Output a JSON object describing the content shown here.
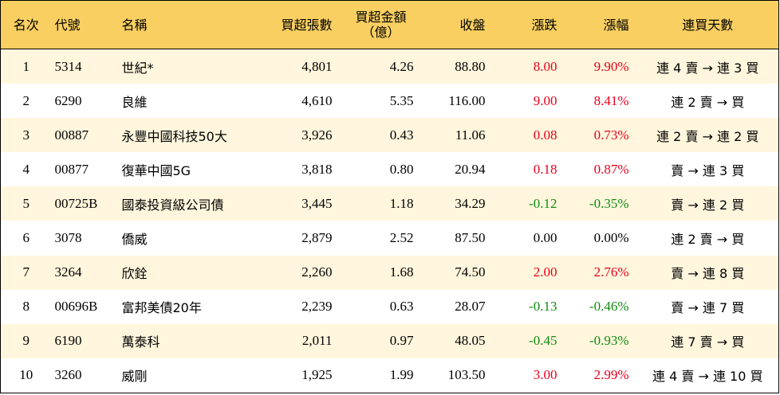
{
  "headers": {
    "rank": "名次",
    "code": "代號",
    "name": "名稱",
    "net_buy_lots": "買超張數",
    "net_buy_amount_line1": "買超金額",
    "net_buy_amount_line2": "（億）",
    "close": "收盤",
    "change": "漲跌",
    "change_pct": "漲幅",
    "consecutive_days": "連買天數"
  },
  "colors": {
    "header_bg": "#f9cf61",
    "odd_row_bg": "#fff6dd",
    "even_row_bg": "#ffffff",
    "up": "#e8001c",
    "down": "#118c11",
    "flat": "#000000"
  },
  "rows": [
    {
      "rank": "1",
      "code": "5314",
      "name": "世紀*",
      "lots": "4,801",
      "amount": "4.26",
      "close": "88.80",
      "change": "8.00",
      "pct": "9.90%",
      "dir": "up",
      "days": "連 4 賣 → 連 3 買"
    },
    {
      "rank": "2",
      "code": "6290",
      "name": "良維",
      "lots": "4,610",
      "amount": "5.35",
      "close": "116.00",
      "change": "9.00",
      "pct": "8.41%",
      "dir": "up",
      "days": "連 2 賣 → 買"
    },
    {
      "rank": "3",
      "code": "00887",
      "name": "永豐中國科技50大",
      "lots": "3,926",
      "amount": "0.43",
      "close": "11.06",
      "change": "0.08",
      "pct": "0.73%",
      "dir": "up",
      "days": "連 2 賣 → 連 2 買"
    },
    {
      "rank": "4",
      "code": "00877",
      "name": "復華中國5G",
      "lots": "3,818",
      "amount": "0.80",
      "close": "20.94",
      "change": "0.18",
      "pct": "0.87%",
      "dir": "up",
      "days": "賣 → 連 3 買"
    },
    {
      "rank": "5",
      "code": "00725B",
      "name": "國泰投資級公司債",
      "lots": "3,445",
      "amount": "1.18",
      "close": "34.29",
      "change": "-0.12",
      "pct": "-0.35%",
      "dir": "down",
      "days": "賣 → 連 2 買"
    },
    {
      "rank": "6",
      "code": "3078",
      "name": "僑威",
      "lots": "2,879",
      "amount": "2.52",
      "close": "87.50",
      "change": "0.00",
      "pct": "0.00%",
      "dir": "flat",
      "days": "連 2 賣 → 買"
    },
    {
      "rank": "7",
      "code": "3264",
      "name": "欣銓",
      "lots": "2,260",
      "amount": "1.68",
      "close": "74.50",
      "change": "2.00",
      "pct": "2.76%",
      "dir": "up",
      "days": "賣 → 連 8 買"
    },
    {
      "rank": "8",
      "code": "00696B",
      "name": "富邦美債20年",
      "lots": "2,239",
      "amount": "0.63",
      "close": "28.07",
      "change": "-0.13",
      "pct": "-0.46%",
      "dir": "down",
      "days": "賣 → 連 7 買"
    },
    {
      "rank": "9",
      "code": "6190",
      "name": "萬泰科",
      "lots": "2,011",
      "amount": "0.97",
      "close": "48.05",
      "change": "-0.45",
      "pct": "-0.93%",
      "dir": "down",
      "days": "連 7 賣 → 買"
    },
    {
      "rank": "10",
      "code": "3260",
      "name": "威剛",
      "lots": "1,925",
      "amount": "1.99",
      "close": "103.50",
      "change": "3.00",
      "pct": "2.99%",
      "dir": "up",
      "days": "連 4 賣 → 連 10 買"
    }
  ]
}
